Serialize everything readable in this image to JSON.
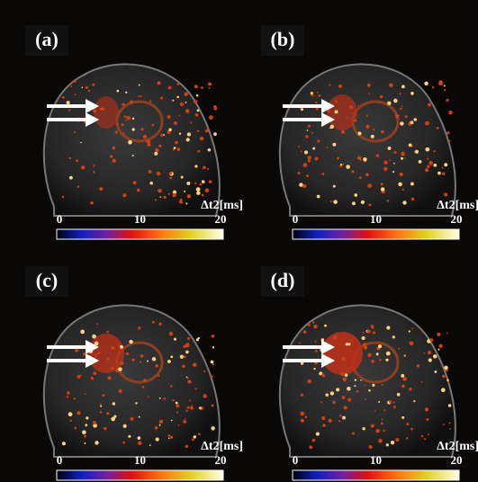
{
  "panels": [
    {
      "label": "(a)",
      "colorbar": {
        "title": "Δt2[ms]",
        "ticks": [
          0,
          10,
          20
        ]
      }
    },
    {
      "label": "(b)",
      "colorbar": {
        "title": "Δt2[ms]",
        "ticks": [
          0,
          10,
          20
        ]
      }
    },
    {
      "label": "(c)",
      "colorbar": {
        "title": "Δt2[ms]",
        "ticks": [
          0,
          10,
          20
        ]
      }
    },
    {
      "label": "(d)",
      "colorbar": {
        "title": "Δt2[ms]",
        "ticks": [
          0,
          10,
          20
        ]
      }
    }
  ]
}
